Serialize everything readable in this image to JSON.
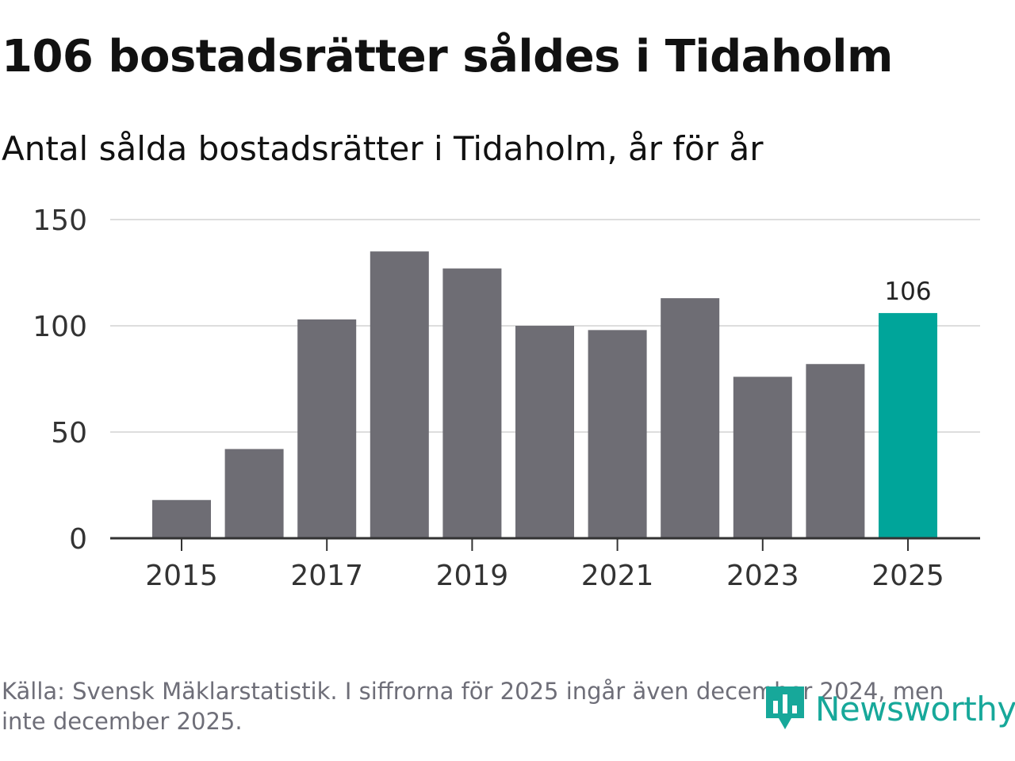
{
  "header": {
    "title": "106 bostadsrätter såldes i Tidaholm",
    "subtitle": "Antal sålda bostadsrätter i Tidaholm, år för år"
  },
  "chart_data": {
    "type": "bar",
    "title": "106 bostadsrätter såldes i Tidaholm",
    "subtitle": "Antal sålda bostadsrätter i Tidaholm, år för år",
    "xlabel": "",
    "ylabel": "",
    "categories": [
      "2015",
      "2016",
      "2017",
      "2018",
      "2019",
      "2020",
      "2021",
      "2022",
      "2023",
      "2024",
      "2025"
    ],
    "values": [
      18,
      42,
      103,
      135,
      127,
      100,
      98,
      113,
      76,
      82,
      106
    ],
    "x_tick_labels": [
      "2015",
      "2017",
      "2019",
      "2021",
      "2023",
      "2025"
    ],
    "y_ticks": [
      0,
      50,
      100,
      150
    ],
    "ylim": [
      0,
      150
    ],
    "grid": true,
    "highlight": {
      "category": "2025",
      "label": "106"
    },
    "colors": {
      "bar": "#6e6d74",
      "highlight": "#00a59a",
      "grid": "#dddddd",
      "axis": "#333333"
    }
  },
  "footer": {
    "source": "Källa: Svensk Mäklarstatistik. I siffrorna för 2025 ingår även december 2024, men inte december 2025.",
    "logo_text": "Newsworthy",
    "logo_color": "#17a89a"
  }
}
